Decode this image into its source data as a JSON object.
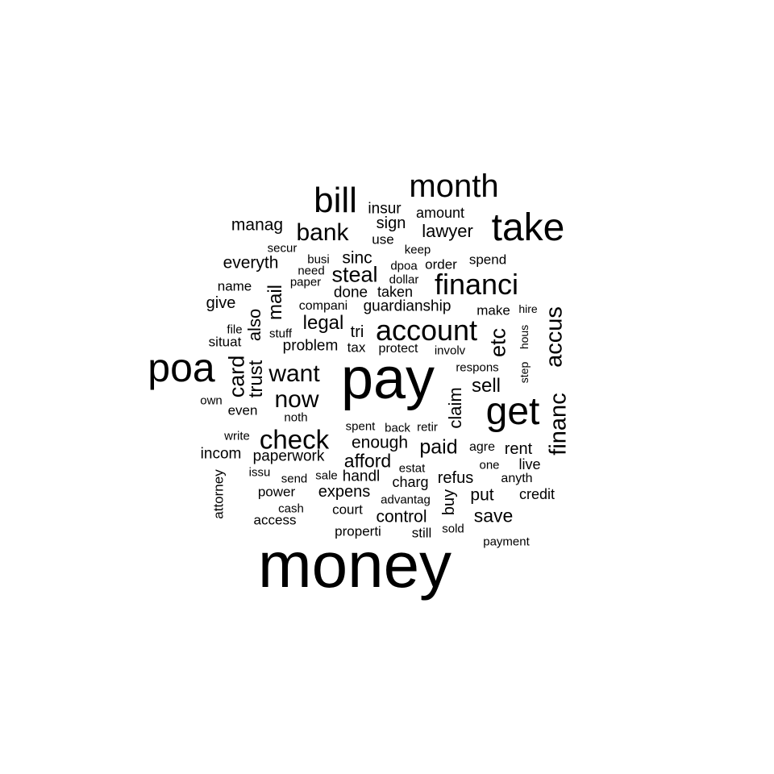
{
  "cloud": {
    "words": [
      {
        "text": "money"
      },
      {
        "text": "pay"
      },
      {
        "text": "poa"
      },
      {
        "text": "take"
      },
      {
        "text": "get"
      },
      {
        "text": "bill"
      },
      {
        "text": "month"
      },
      {
        "text": "account"
      },
      {
        "text": "financi"
      },
      {
        "text": "check"
      },
      {
        "text": "bank"
      },
      {
        "text": "want"
      },
      {
        "text": "now"
      },
      {
        "text": "accus"
      },
      {
        "text": "financ"
      },
      {
        "text": "steal"
      },
      {
        "text": "card"
      },
      {
        "text": "etc"
      },
      {
        "text": "trust"
      },
      {
        "text": "mail"
      },
      {
        "text": "paid"
      },
      {
        "text": "legal"
      },
      {
        "text": "sell"
      },
      {
        "text": "claim"
      },
      {
        "text": "save"
      },
      {
        "text": "also"
      },
      {
        "text": "afford"
      },
      {
        "text": "lawyer"
      },
      {
        "text": "everyth"
      },
      {
        "text": "manag"
      },
      {
        "text": "enough"
      },
      {
        "text": "control"
      },
      {
        "text": "sinc"
      },
      {
        "text": "put"
      },
      {
        "text": "expens"
      },
      {
        "text": "paperwork"
      },
      {
        "text": "guardianship"
      },
      {
        "text": "problem"
      },
      {
        "text": "handl"
      },
      {
        "text": "buy"
      },
      {
        "text": "rent"
      },
      {
        "text": "sign"
      },
      {
        "text": "insur"
      },
      {
        "text": "amount"
      },
      {
        "text": "give"
      },
      {
        "text": "incom"
      },
      {
        "text": "tri"
      },
      {
        "text": "refus"
      },
      {
        "text": "done"
      },
      {
        "text": "taken"
      },
      {
        "text": "live"
      },
      {
        "text": "credit"
      },
      {
        "text": "charg"
      },
      {
        "text": "order"
      },
      {
        "text": "spend"
      },
      {
        "text": "name"
      },
      {
        "text": "use"
      },
      {
        "text": "properti"
      },
      {
        "text": "make"
      },
      {
        "text": "tax"
      },
      {
        "text": "protect"
      },
      {
        "text": "power"
      },
      {
        "text": "access"
      },
      {
        "text": "attorney"
      },
      {
        "text": "even"
      },
      {
        "text": "court"
      },
      {
        "text": "still"
      },
      {
        "text": "compani"
      },
      {
        "text": "respons"
      },
      {
        "text": "situat"
      },
      {
        "text": "agre"
      },
      {
        "text": "anyth"
      },
      {
        "text": "secur"
      },
      {
        "text": "busi"
      },
      {
        "text": "need"
      },
      {
        "text": "paper"
      },
      {
        "text": "dpoa"
      },
      {
        "text": "dollar"
      },
      {
        "text": "keep"
      },
      {
        "text": "involv"
      },
      {
        "text": "spent"
      },
      {
        "text": "back"
      },
      {
        "text": "retir"
      },
      {
        "text": "write"
      },
      {
        "text": "issu"
      },
      {
        "text": "send"
      },
      {
        "text": "sale"
      },
      {
        "text": "estat"
      },
      {
        "text": "advantag"
      },
      {
        "text": "cash"
      },
      {
        "text": "sold"
      },
      {
        "text": "payment"
      },
      {
        "text": "one"
      },
      {
        "text": "hire"
      },
      {
        "text": "file"
      },
      {
        "text": "stuff"
      },
      {
        "text": "own"
      },
      {
        "text": "noth"
      },
      {
        "text": "hous"
      },
      {
        "text": "step"
      }
    ]
  }
}
